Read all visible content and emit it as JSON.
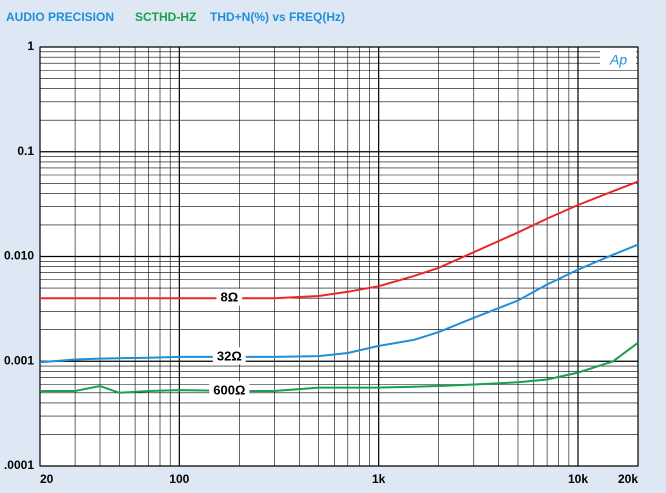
{
  "chart_data": {
    "type": "line",
    "title": "AUDIO PRECISION",
    "subtitle": "SCTHD-HZ",
    "y_label": "THD+N(%) vs FREQ(Hz)",
    "logo": "Ap",
    "log_x": true,
    "log_y": true,
    "grid": true,
    "x": [
      20,
      30,
      40,
      50,
      70,
      100,
      200,
      300,
      500,
      700,
      1000,
      1500,
      2000,
      3000,
      5000,
      7000,
      10000,
      15000,
      20000
    ],
    "xlim": [
      20,
      20000
    ],
    "xticks": [
      20,
      100,
      {
        "value": 1000,
        "label": "1k"
      },
      {
        "value": 10000,
        "label": "10k"
      },
      {
        "value": 20000,
        "label": "20k"
      }
    ],
    "ylim": [
      0.0001,
      1
    ],
    "yticks": [
      1,
      0.1,
      {
        "value": 0.01,
        "label": "0.010"
      },
      0.001,
      {
        "value": 0.0001,
        "label": ".0001"
      }
    ],
    "series": [
      {
        "name": "8Ω",
        "color": "#e8282a",
        "values": [
          0.004,
          0.004,
          0.004,
          0.004,
          0.004,
          0.004,
          0.004,
          0.004,
          0.0042,
          0.0046,
          0.0052,
          0.0065,
          0.0078,
          0.011,
          0.017,
          0.023,
          0.031,
          0.042,
          0.052
        ]
      },
      {
        "name": "32Ω",
        "color": "#1e8fd8",
        "values": [
          0.00098,
          0.00104,
          0.00106,
          0.00107,
          0.00108,
          0.0011,
          0.0011,
          0.0011,
          0.00112,
          0.0012,
          0.0014,
          0.0016,
          0.0019,
          0.0026,
          0.0038,
          0.0054,
          0.0075,
          0.0104,
          0.013
        ]
      },
      {
        "name": "600Ω",
        "color": "#1aa04a",
        "values": [
          0.00052,
          0.00052,
          0.00058,
          0.0005,
          0.00052,
          0.00053,
          0.00052,
          0.00052,
          0.00056,
          0.00056,
          0.00056,
          0.00057,
          0.00058,
          0.0006,
          0.00063,
          0.00067,
          0.00078,
          0.001,
          0.0015
        ]
      }
    ]
  }
}
